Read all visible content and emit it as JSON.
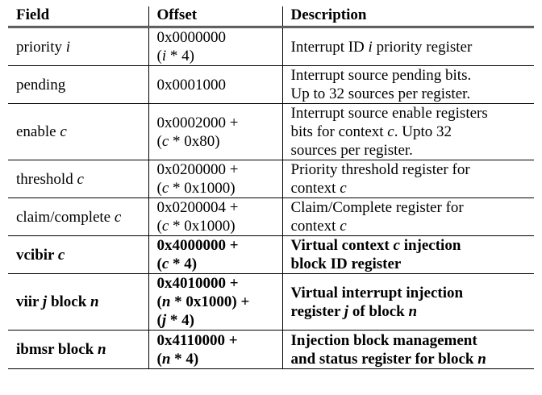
{
  "headers": {
    "field": "Field",
    "offset": "Offset",
    "description": "Description"
  },
  "rows": [
    {
      "field": {
        "name": "priority",
        "var": "i"
      },
      "offset": [
        {
          "pre": "0x0000000",
          "var": "",
          "post": ""
        },
        {
          "pre": "(",
          "var": "i",
          "post": " * 4)"
        }
      ],
      "description": [
        {
          "pre": "Interrupt ID ",
          "var": "i",
          "post": " priority register"
        }
      ]
    },
    {
      "field": {
        "name": "pending",
        "var": ""
      },
      "offset": [
        {
          "pre": "0x0001000",
          "var": "",
          "post": ""
        }
      ],
      "description": [
        {
          "pre": "Interrupt source pending bits.",
          "var": "",
          "post": ""
        },
        {
          "pre": "Up to 32 sources per register.",
          "var": "",
          "post": ""
        }
      ]
    },
    {
      "field": {
        "name": "enable",
        "var": "c"
      },
      "offset": [
        {
          "pre": "0x0002000 +",
          "var": "",
          "post": ""
        },
        {
          "pre": "(",
          "var": "c",
          "post": " * 0x80)"
        }
      ],
      "description": [
        {
          "pre": "Interrupt source enable registers",
          "var": "",
          "post": ""
        },
        {
          "pre": "bits for context ",
          "var": "c",
          "post": ". Upto 32"
        },
        {
          "pre": "sources per register.",
          "var": "",
          "post": ""
        }
      ]
    },
    {
      "field": {
        "name": "threshold",
        "var": "c"
      },
      "offset": [
        {
          "pre": "0x0200000 +",
          "var": "",
          "post": ""
        },
        {
          "pre": "(",
          "var": "c",
          "post": " * 0x1000)"
        }
      ],
      "description": [
        {
          "pre": "Priority threshold register for",
          "var": "",
          "post": ""
        },
        {
          "pre": "context ",
          "var": "c",
          "post": ""
        }
      ]
    },
    {
      "field": {
        "name": "claim/complete",
        "var": "c"
      },
      "offset": [
        {
          "pre": "0x0200004 +",
          "var": "",
          "post": ""
        },
        {
          "pre": "(",
          "var": "c",
          "post": " * 0x1000)"
        }
      ],
      "description": [
        {
          "pre": "Claim/Complete register for",
          "var": "",
          "post": ""
        },
        {
          "pre": "context ",
          "var": "c",
          "post": ""
        }
      ]
    },
    {
      "bold": true,
      "field": {
        "name": "vcibir",
        "var": "c"
      },
      "offset": [
        {
          "pre": "0x4000000 +",
          "var": "",
          "post": ""
        },
        {
          "pre": "(",
          "var": "c",
          "post": " * 4)"
        }
      ],
      "description": [
        {
          "pre": "Virtual context ",
          "var": "c",
          "post": " injection"
        },
        {
          "pre": "block ID register",
          "var": "",
          "post": ""
        }
      ]
    },
    {
      "bold": true,
      "field": {
        "name": "viir",
        "var": "j",
        "post": " block ",
        "var2": "n"
      },
      "offset": [
        {
          "pre": "0x4010000 +",
          "var": "",
          "post": ""
        },
        {
          "pre": "(",
          "var": "n",
          "post": " * 0x1000) +"
        },
        {
          "pre": "(",
          "var": "j",
          "post": " * 4)"
        }
      ],
      "description": [
        {
          "pre": "Virtual interrupt injection",
          "var": "",
          "post": ""
        },
        {
          "pre": "register ",
          "var": "j",
          "post": " of block ",
          "var2": "n"
        }
      ]
    },
    {
      "bold": true,
      "field": {
        "name": "ibmsr block",
        "var": "n"
      },
      "offset": [
        {
          "pre": "0x4110000 +",
          "var": "",
          "post": ""
        },
        {
          "pre": "(",
          "var": "n",
          "post": " * 4)"
        }
      ],
      "description": [
        {
          "pre": "Injection block management",
          "var": "",
          "post": ""
        },
        {
          "pre": "and status register for block ",
          "var": "n",
          "post": ""
        }
      ]
    }
  ]
}
